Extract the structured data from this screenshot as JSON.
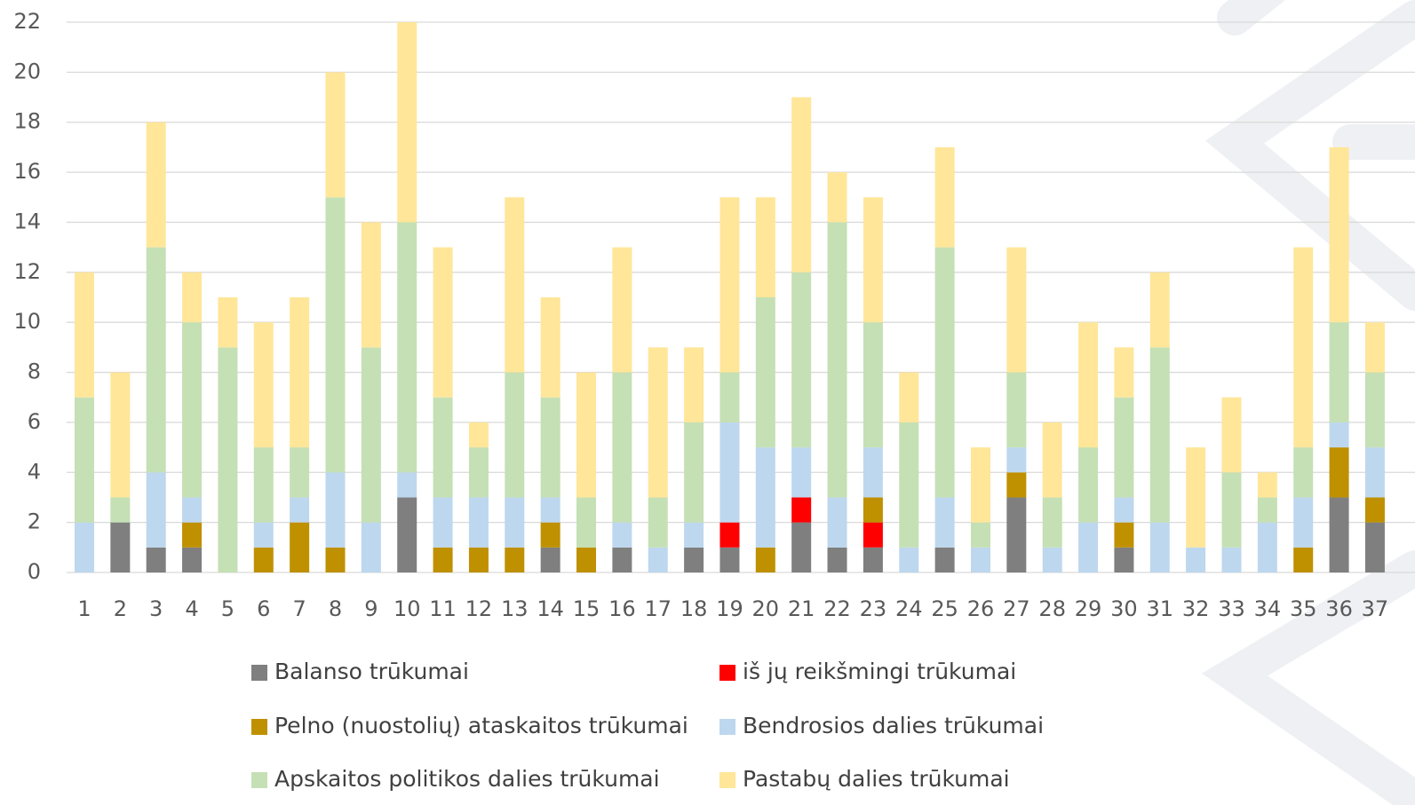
{
  "chart_data": {
    "type": "stacked_bar",
    "categories": [
      "1",
      "2",
      "3",
      "4",
      "5",
      "6",
      "7",
      "8",
      "9",
      "10",
      "11",
      "12",
      "13",
      "14",
      "15",
      "16",
      "17",
      "18",
      "19",
      "20",
      "21",
      "22",
      "23",
      "24",
      "25",
      "26",
      "27",
      "28",
      "29",
      "30",
      "31",
      "32",
      "33",
      "34",
      "35",
      "36",
      "37"
    ],
    "series": [
      {
        "name": "Balanso trūkumai",
        "color": "#7f7f7f",
        "values": [
          0,
          2,
          1,
          1,
          0,
          0,
          0,
          0,
          0,
          3,
          0,
          0,
          0,
          1,
          0,
          1,
          0,
          1,
          1,
          0,
          2,
          1,
          1,
          0,
          1,
          0,
          3,
          0,
          0,
          1,
          0,
          0,
          0,
          0,
          0,
          3,
          2
        ]
      },
      {
        "name": "iš jų reikšmingi trūkumai",
        "color": "#ff0000",
        "values": [
          0,
          0,
          0,
          0,
          0,
          0,
          0,
          0,
          0,
          0,
          0,
          0,
          0,
          0,
          0,
          0,
          0,
          0,
          1,
          0,
          1,
          0,
          1,
          0,
          0,
          0,
          0,
          0,
          0,
          0,
          0,
          0,
          0,
          0,
          0,
          0,
          0
        ]
      },
      {
        "name": "Pelno (nuostolių) ataskaitos trūkumai",
        "color": "#bf9000",
        "values": [
          0,
          0,
          0,
          1,
          0,
          1,
          2,
          1,
          0,
          0,
          1,
          1,
          1,
          1,
          1,
          0,
          0,
          0,
          0,
          1,
          0,
          0,
          1,
          0,
          0,
          0,
          1,
          0,
          0,
          1,
          0,
          0,
          0,
          0,
          1,
          2,
          1
        ]
      },
      {
        "name": "Bendrosios dalies trūkumai",
        "color": "#bdd7ee",
        "values": [
          2,
          0,
          3,
          1,
          0,
          1,
          1,
          3,
          2,
          1,
          2,
          2,
          2,
          1,
          0,
          1,
          1,
          1,
          4,
          4,
          2,
          2,
          2,
          1,
          2,
          1,
          1,
          1,
          2,
          1,
          2,
          1,
          1,
          2,
          2,
          1,
          2
        ]
      },
      {
        "name": "Apskaitos politikos dalies trūkumai",
        "color": "#c5e0b4",
        "values": [
          5,
          1,
          9,
          7,
          9,
          3,
          2,
          11,
          7,
          10,
          4,
          2,
          5,
          4,
          2,
          6,
          2,
          4,
          2,
          6,
          7,
          11,
          5,
          5,
          10,
          1,
          3,
          2,
          3,
          4,
          7,
          0,
          3,
          1,
          2,
          4,
          3
        ]
      },
      {
        "name": "Pastabų dalies trūkumai",
        "color": "#ffe699",
        "values": [
          5,
          5,
          5,
          2,
          2,
          5,
          6,
          5,
          5,
          8,
          6,
          1,
          7,
          4,
          5,
          5,
          6,
          3,
          7,
          4,
          7,
          2,
          5,
          2,
          4,
          3,
          5,
          3,
          5,
          2,
          3,
          4,
          3,
          1,
          8,
          7,
          2
        ]
      }
    ],
    "ylim": [
      0,
      22
    ],
    "yticks": [
      0,
      2,
      4,
      6,
      8,
      10,
      12,
      14,
      16,
      18,
      20,
      22
    ],
    "grid": true,
    "legend": "bottom"
  }
}
